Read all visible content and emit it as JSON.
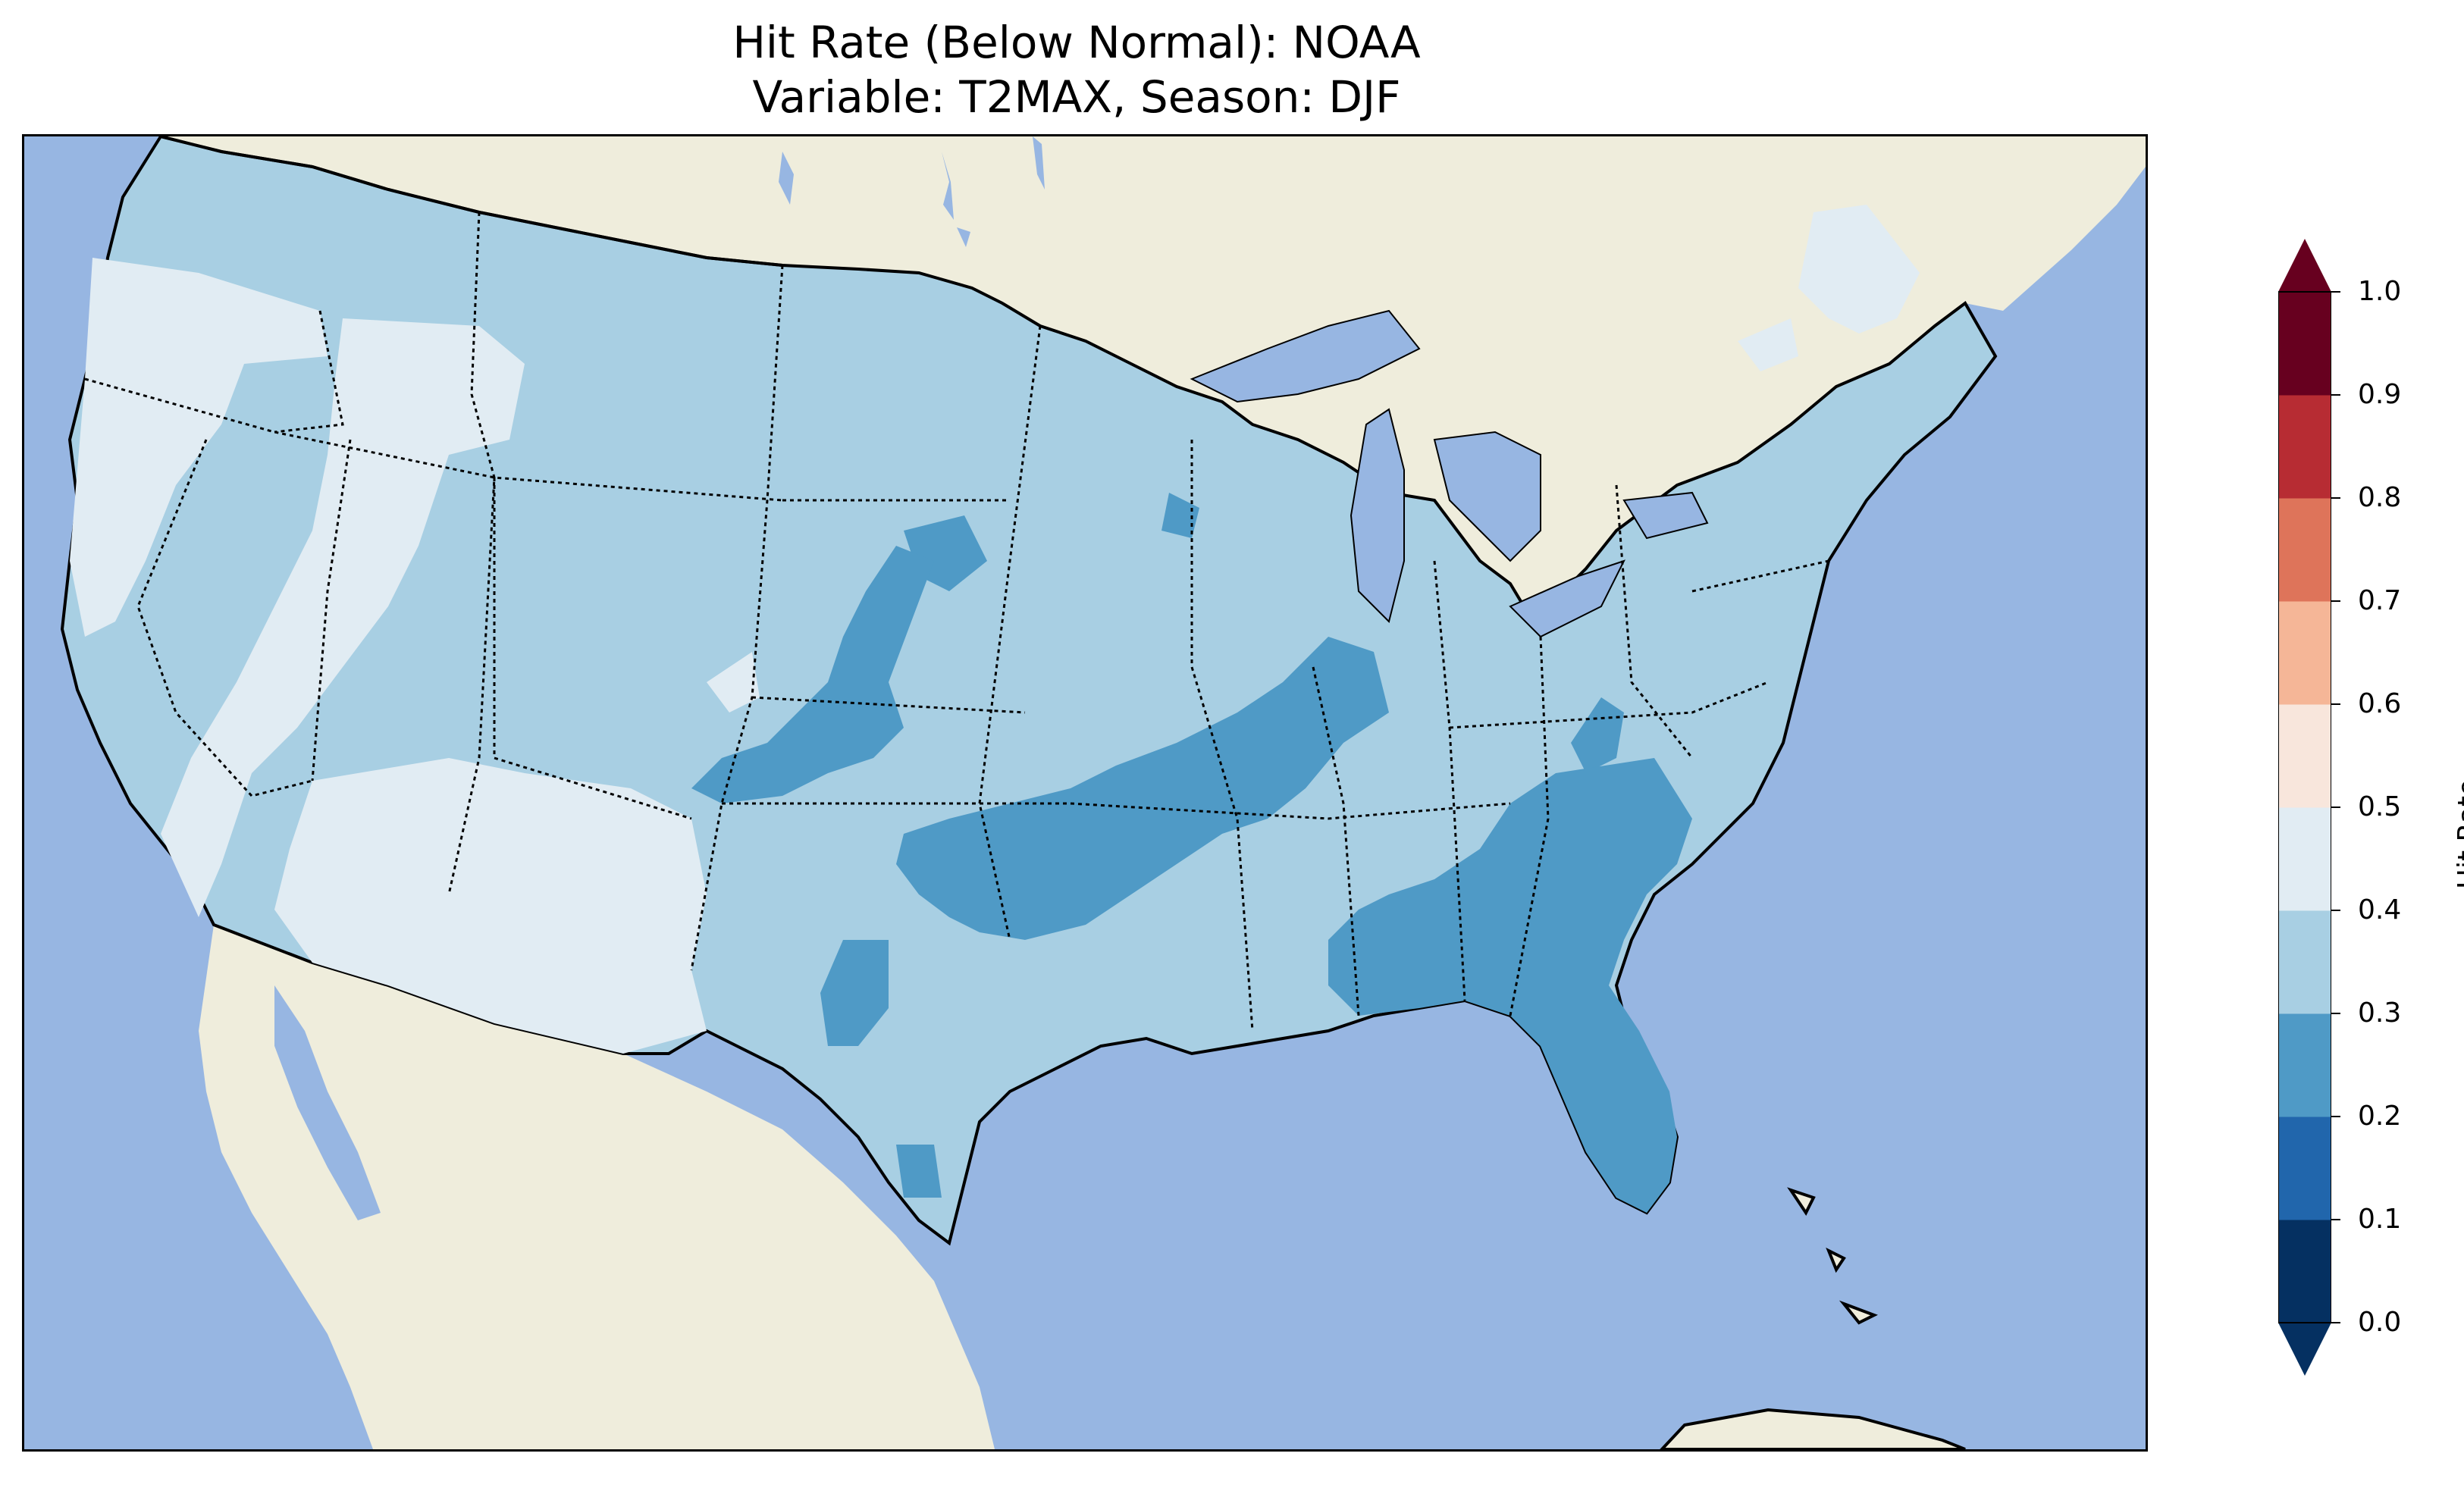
{
  "title": {
    "line1": "Hit Rate (Below Normal): NOAA",
    "line2": "Variable: T2MAX, Season: DJF"
  },
  "map": {
    "type": "choropleth-grid",
    "region": "Contiguous United States",
    "variable": "T2MAX",
    "season": "DJF",
    "metric": "Hit Rate (Below Normal)",
    "source": "NOAA",
    "colors": {
      "ocean": "#97b6e2",
      "land": "#efeddc",
      "borders": "#000000"
    },
    "region_values": [
      {
        "region": "Pacific Northwest coast / Oregon–N. California",
        "bin": "0.4-0.5"
      },
      {
        "region": "Nevada / Great Basin",
        "bin": "0.4-0.5"
      },
      {
        "region": "Arizona / New Mexico",
        "bin": "0.4-0.5"
      },
      {
        "region": "Northern Rockies & Plains",
        "bin": "0.3-0.4"
      },
      {
        "region": "Maine",
        "bin": "0.4-0.5"
      },
      {
        "region": "Central Plains band (Nebraska–Kansas)",
        "bin": "0.2-0.3"
      },
      {
        "region": "Oklahoma–Arkansas–Tennessee band",
        "bin": "0.2-0.3"
      },
      {
        "region": "Southeast (Georgia, South Carolina, Florida)",
        "bin": "0.2-0.3"
      },
      {
        "region": "Texas",
        "bin": "0.3-0.4"
      },
      {
        "region": "Midwest & Northeast",
        "bin": "0.3-0.4"
      }
    ]
  },
  "colorbar": {
    "label": "Hit Rate",
    "ticks": [
      "0.0",
      "0.1",
      "0.2",
      "0.3",
      "0.4",
      "0.5",
      "0.6",
      "0.7",
      "0.8",
      "0.9",
      "1.0"
    ],
    "bins": [
      {
        "from": 0.0,
        "to": 0.1,
        "color": "#053061"
      },
      {
        "from": 0.1,
        "to": 0.2,
        "color": "#2166ac"
      },
      {
        "from": 0.2,
        "to": 0.3,
        "color": "#4f9ac6"
      },
      {
        "from": 0.3,
        "to": 0.4,
        "color": "#a8cfe3"
      },
      {
        "from": 0.4,
        "to": 0.5,
        "color": "#e1ecf3"
      },
      {
        "from": 0.5,
        "to": 0.6,
        "color": "#f8e6dc"
      },
      {
        "from": 0.6,
        "to": 0.7,
        "color": "#f5b697"
      },
      {
        "from": 0.7,
        "to": 0.8,
        "color": "#de745a"
      },
      {
        "from": 0.8,
        "to": 0.9,
        "color": "#b72c33"
      },
      {
        "from": 0.9,
        "to": 1.0,
        "color": "#67001f"
      }
    ],
    "extend": "both"
  }
}
